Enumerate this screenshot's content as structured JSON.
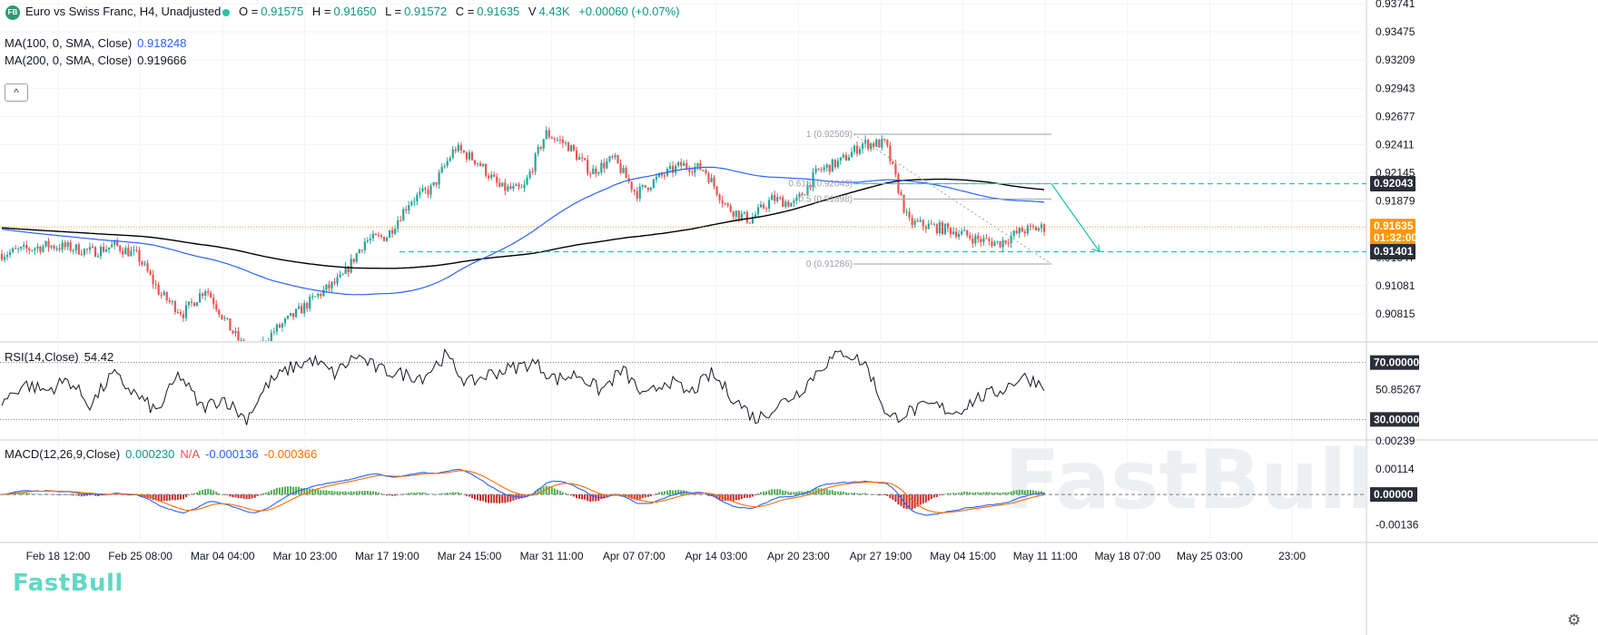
{
  "header": {
    "logo_text": "FB",
    "title": "Euro vs Swiss Franc, H4, Unadjusted",
    "o_label": "O =",
    "o_value": "0.91575",
    "h_label": "H =",
    "h_value": "0.91650",
    "l_label": "L =",
    "l_value": "0.91572",
    "c_label": "C =",
    "c_value": "0.91635",
    "v_label": "V",
    "v_value": "4.43K",
    "change": "+0.00060 (+0.07%)"
  },
  "indicators": {
    "ma100_label": "MA(100, 0, SMA, Close)",
    "ma100_value": "0.918248",
    "ma200_label": "MA(200, 0, SMA, Close)",
    "ma200_value": "0.919666",
    "rsi_label": "RSI(14,Close)",
    "rsi_value": "54.42",
    "macd_label": "MACD(12,26,9,Close)",
    "macd_hist": "0.000230",
    "macd_na": "N/A",
    "macd_line": "-0.000136",
    "macd_signal": "-0.000366"
  },
  "collapse_icon": "chevron-up-icon",
  "brand": "FastBull",
  "watermark": "FastBull",
  "colors": {
    "up": "#26a69a",
    "down": "#ef5350",
    "ma100": "#2962ff",
    "ma200": "#000000",
    "price_tag": "#ff9800",
    "level": "#26c6a6",
    "macd": "#2962ff",
    "signal": "#ff6d00"
  },
  "chart_data": {
    "type": "candlestick",
    "symbol": "Euro vs Swiss Franc",
    "timeframe": "H4",
    "y_ticks": [
      "0.93741",
      "0.93475",
      "0.93209",
      "0.92943",
      "0.92677",
      "0.92411",
      "0.92145",
      "0.91879",
      "0.91613",
      "0.91347",
      "0.91081",
      "0.90815"
    ],
    "x_ticks": [
      "Feb 18 12:00",
      "Feb 25 08:00",
      "Mar 04 04:00",
      "Mar 10 23:00",
      "Mar 17 19:00",
      "Mar 24 15:00",
      "Mar 31 11:00",
      "Apr 07 07:00",
      "Apr 14 03:00",
      "Apr 20 23:00",
      "Apr 27 19:00",
      "May 04 15:00",
      "May 11 11:00",
      "May 18 07:00",
      "May 25 03:00",
      "23:00"
    ],
    "price_anchors": [
      0.9138,
      0.9142,
      0.9146,
      0.9144,
      0.914,
      0.9146,
      0.9136,
      0.91,
      0.9082,
      0.9106,
      0.907,
      0.904,
      0.9065,
      0.9082,
      0.91,
      0.9115,
      0.915,
      0.9155,
      0.9188,
      0.92,
      0.9238,
      0.9225,
      0.92,
      0.9198,
      0.9252,
      0.924,
      0.9215,
      0.9228,
      0.9195,
      0.921,
      0.9222,
      0.9218,
      0.9182,
      0.917,
      0.919,
      0.9185,
      0.9216,
      0.9225,
      0.9242,
      0.9242,
      0.9168,
      0.9164,
      0.916,
      0.9152,
      0.9148,
      0.916,
      0.9163
    ],
    "current_price": "0.91635",
    "countdown": "01:32:00",
    "levels": [
      {
        "name": "resistance",
        "value": "0.92043"
      },
      {
        "name": "support",
        "value": "0.91401"
      }
    ],
    "fibonacci": [
      {
        "ratio": "1",
        "price": "0.92509"
      },
      {
        "ratio": "0.618",
        "price": "0.92043"
      },
      {
        "ratio": "0.5",
        "price": "0.91898"
      },
      {
        "ratio": "0",
        "price": "0.91286"
      }
    ],
    "fib_labels": [
      "1 (0.92509)",
      "0.618 (0.92043)",
      "0.5 (0.91898)",
      "0 (0.91286)"
    ],
    "rsi": {
      "ticks": [
        "70.00000",
        "50.85267",
        "30.00000"
      ],
      "overbought": 70,
      "oversold": 30,
      "anchors": [
        42,
        55,
        50,
        58,
        40,
        62,
        48,
        35,
        62,
        38,
        45,
        30,
        55,
        66,
        72,
        62,
        75,
        65,
        62,
        60,
        75,
        55,
        62,
        66,
        70,
        58,
        62,
        50,
        65,
        45,
        58,
        48,
        62,
        45,
        30,
        40,
        50,
        68,
        78,
        68,
        30,
        36,
        40,
        35,
        45,
        50,
        60,
        55
      ]
    },
    "macd": {
      "ticks": [
        "0.00239",
        "0.00114",
        "0.00000",
        "-0.00136"
      ],
      "current_value": "0.00000"
    }
  }
}
